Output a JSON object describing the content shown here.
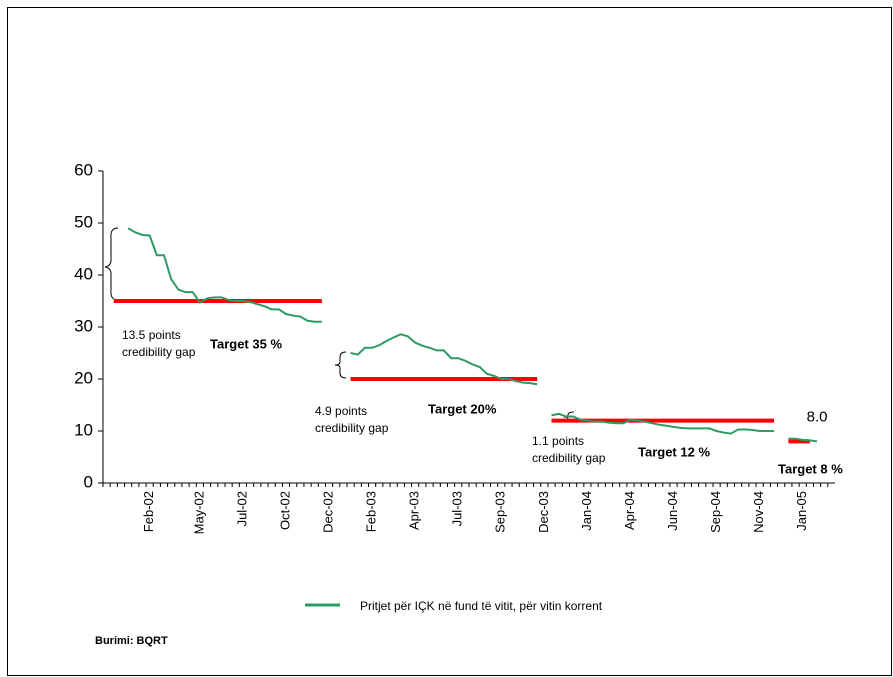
{
  "chart_data": {
    "type": "line",
    "categories": [
      null,
      null,
      null,
      null,
      null,
      null,
      "Feb-02",
      null,
      null,
      null,
      null,
      null,
      null,
      "May-02",
      null,
      null,
      null,
      null,
      null,
      "Jul-02",
      null,
      null,
      null,
      null,
      null,
      "Oct-02",
      null,
      null,
      null,
      null,
      null,
      "Dec-02",
      null,
      null,
      null,
      null,
      null,
      "Feb-03",
      null,
      null,
      null,
      null,
      null,
      "Apr-03",
      null,
      null,
      null,
      null,
      null,
      "Jul-03",
      null,
      null,
      null,
      null,
      null,
      "Sep-03",
      null,
      null,
      null,
      null,
      null,
      "Dec-03",
      null,
      null,
      null,
      null,
      null,
      "Jan-04",
      null,
      null,
      null,
      null,
      null,
      "Apr-04",
      null,
      null,
      null,
      null,
      null,
      "Jun-04",
      null,
      null,
      null,
      null,
      null,
      "Sep-04",
      null,
      null,
      null,
      null,
      null,
      "Nov-04",
      null,
      null,
      null,
      null,
      null,
      "Jan-05",
      null,
      null,
      null,
      null
    ],
    "series": [
      {
        "name": "Pritjet për IÇK në fund të vitit, për vitin korrent",
        "color": "#2e9a66",
        "values": [
          null,
          null,
          null,
          49,
          48.2,
          47.7,
          47.6,
          43.8,
          43.8,
          39.2,
          37.2,
          36.7,
          36.7,
          34.7,
          35.5,
          35.7,
          35.7,
          35.2,
          35,
          35,
          34.8,
          34.4,
          34,
          33.4,
          33.4,
          32.5,
          32.2,
          32,
          31.2,
          31,
          31,
          null,
          null,
          null,
          25,
          24.7,
          26,
          26,
          26.5,
          27.3,
          28,
          28.6,
          28.2,
          27,
          26.4,
          26,
          25.5,
          25.5,
          24,
          24,
          23.5,
          22.8,
          22.3,
          21,
          20.6,
          20,
          20,
          19.6,
          19.3,
          19.2,
          19,
          null,
          13,
          13.3,
          12.8,
          12.8,
          12.2,
          12,
          11.8,
          11.8,
          11.6,
          11.5,
          11.5,
          12.2,
          12,
          11.8,
          11.5,
          11.2,
          11,
          10.8,
          10.6,
          10.5,
          10.5,
          10.5,
          10.5,
          10,
          9.7,
          9.5,
          10.3,
          10.3,
          10.2,
          10,
          10,
          10,
          null,
          8.5,
          8.5,
          8.3,
          8.2,
          8,
          null,
          null
        ],
        "value_labels": [
          null,
          null,
          null,
          null,
          null,
          null,
          null,
          null,
          null,
          null,
          null,
          null,
          null,
          null,
          null,
          null,
          null,
          null,
          null,
          null,
          null,
          null,
          null,
          null,
          null,
          null,
          null,
          null,
          null,
          null,
          null,
          null,
          null,
          null,
          null,
          null,
          null,
          null,
          null,
          null,
          null,
          null,
          null,
          null,
          null,
          null,
          null,
          null,
          null,
          null,
          null,
          null,
          null,
          null,
          null,
          null,
          null,
          null,
          null,
          null,
          null,
          null,
          null,
          null,
          null,
          null,
          null,
          null,
          null,
          null,
          null,
          null,
          null,
          null,
          null,
          null,
          null,
          null,
          null,
          null,
          null,
          null,
          null,
          null,
          null,
          null,
          null,
          null,
          null,
          null,
          null,
          null,
          null,
          null,
          null,
          null,
          null,
          null,
          null,
          "8.0",
          null,
          null
        ]
      }
    ],
    "targets": {
      "color": "#ff0000",
      "values": [
        null,
        35,
        35,
        35,
        35,
        35,
        35,
        35,
        35,
        35,
        35,
        35,
        35,
        35,
        35,
        35,
        35,
        35,
        35,
        35,
        35,
        35,
        35,
        35,
        35,
        35,
        35,
        35,
        35,
        35,
        35,
        null,
        null,
        null,
        20,
        20,
        20,
        20,
        20,
        20,
        20,
        20,
        20,
        20,
        20,
        20,
        20,
        20,
        20,
        20,
        20,
        20,
        20,
        20,
        20,
        20,
        20,
        20,
        20,
        20,
        20,
        null,
        12,
        12,
        12,
        12,
        12,
        12,
        12,
        12,
        12,
        12,
        12,
        12,
        12,
        12,
        12,
        12,
        12,
        12,
        12,
        12,
        12,
        12,
        12,
        12,
        12,
        12,
        12,
        12,
        12,
        12,
        12,
        12,
        null,
        8,
        8,
        8,
        8,
        null,
        null,
        null
      ]
    },
    "target_labels": [
      "Target 35 %",
      "Target 20%",
      "Target 12 %",
      "Target 8 %"
    ],
    "annotations": [
      {
        "lines": [
          "13.5 points",
          "credibility gap"
        ]
      },
      {
        "lines": [
          "4.9 points",
          "credibility gap"
        ]
      },
      {
        "lines": [
          "1.1 points",
          "credibility gap"
        ]
      }
    ],
    "source": "Burimi: BQRT",
    "ylim": [
      0,
      60
    ],
    "yticks": [
      0,
      10,
      20,
      30,
      40,
      50,
      60
    ]
  }
}
